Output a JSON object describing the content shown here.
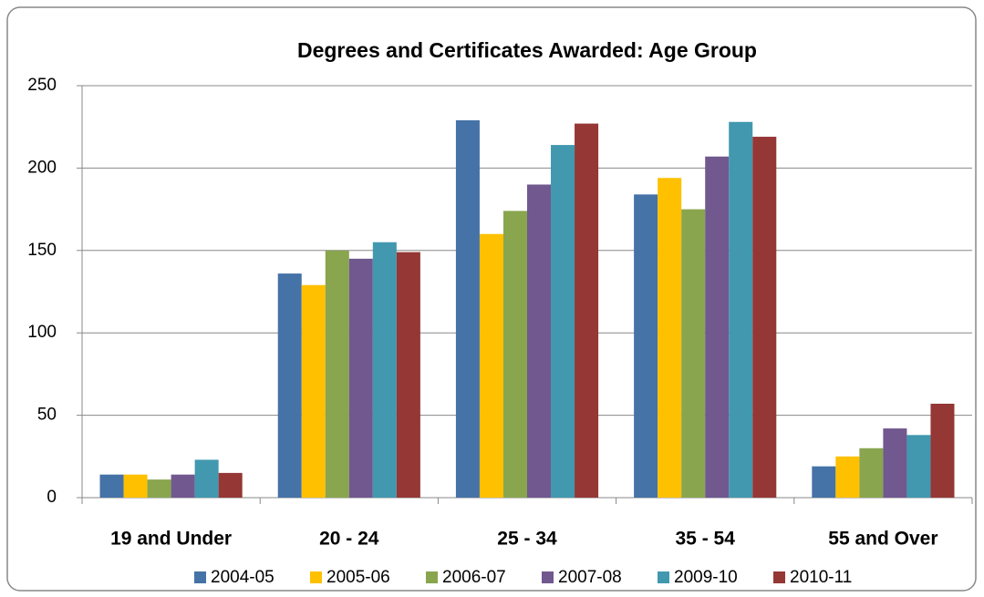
{
  "chart_data": {
    "type": "bar",
    "title": "Degrees and Certificates Awarded: Age Group",
    "categories": [
      "19 and Under",
      "20 - 24",
      "25 - 34",
      "35 - 54",
      "55 and Over"
    ],
    "series": [
      {
        "name": "2004-05",
        "color": "#4572a7",
        "values": [
          14,
          136,
          229,
          184,
          19
        ]
      },
      {
        "name": "2005-06",
        "color": "#ffc000",
        "values": [
          14,
          129,
          160,
          194,
          25
        ]
      },
      {
        "name": "2006-07",
        "color": "#89a54e",
        "values": [
          11,
          150,
          174,
          175,
          30
        ]
      },
      {
        "name": "2007-08",
        "color": "#71588f",
        "values": [
          14,
          145,
          190,
          207,
          42
        ]
      },
      {
        "name": "2009-10",
        "color": "#4198af",
        "values": [
          23,
          155,
          214,
          228,
          38
        ]
      },
      {
        "name": "2010-11",
        "color": "#953735",
        "values": [
          15,
          149,
          227,
          219,
          57
        ]
      }
    ],
    "ylim": [
      0,
      250
    ],
    "yticks": [
      0,
      50,
      100,
      150,
      200,
      250
    ],
    "grid": true,
    "legend": "bottom"
  }
}
